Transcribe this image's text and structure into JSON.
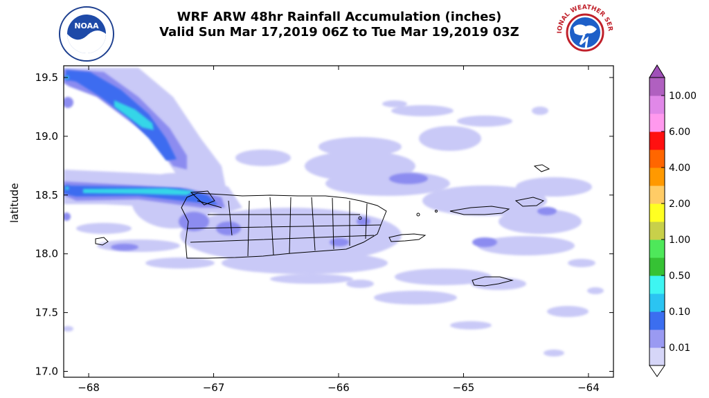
{
  "header": {
    "title_line1": "WRF ARW 48hr Rainfall Accumulation (inches)",
    "title_line2": "Valid Sun Mar 17,2019 06Z to Tue Mar 19,2019 03Z",
    "noaa_logo_text": "NOAA",
    "nws_logo_text": "NATIONAL WEATHER SERVICE"
  },
  "map": {
    "ylabel": "latitude",
    "x_range": [
      -68.2,
      -63.8
    ],
    "y_range": [
      16.95,
      19.6
    ],
    "x_ticks": [
      "−68",
      "−67",
      "−66",
      "−65",
      "−64"
    ],
    "y_ticks": [
      "17.0",
      "17.5",
      "18.0",
      "18.5",
      "19.0",
      "19.5"
    ]
  },
  "colorbar": {
    "labels": [
      "0.01",
      "0.10",
      "0.50",
      "1.00",
      "2.00",
      "4.00",
      "6.00",
      "10.00"
    ],
    "colors": [
      "#d6d6f8",
      "#9a9af2",
      "#3b6ef0",
      "#2bc4f2",
      "#3ef5f2",
      "#36c234",
      "#4ee85a",
      "#c8d04a",
      "#ffff22",
      "#ffcc66",
      "#ff9900",
      "#ff6600",
      "#ff1010",
      "#ff99ee",
      "#e088e8",
      "#b060c0"
    ]
  },
  "colors": {
    "light_blue": "#c9c9f7",
    "mid_blue": "#8c8cf0",
    "blue": "#3c6cf0",
    "cyan": "#35d6e8"
  }
}
